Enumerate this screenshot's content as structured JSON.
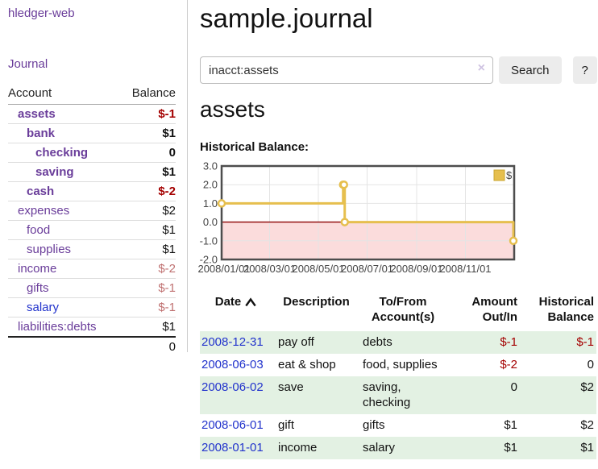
{
  "app": {
    "brand": "hledger-web",
    "nav_journal": "Journal"
  },
  "sidebar": {
    "headers": {
      "account": "Account",
      "balance": "Balance"
    },
    "accounts": [
      {
        "name": "assets",
        "depth": 1,
        "bold": true,
        "balance": "$-1",
        "tone": "neg",
        "link": "purple"
      },
      {
        "name": "bank",
        "depth": 2,
        "bold": true,
        "balance": "$1",
        "tone": "pos",
        "link": "purple"
      },
      {
        "name": "checking",
        "depth": 3,
        "bold": true,
        "balance": "0",
        "tone": "pos",
        "link": "purple"
      },
      {
        "name": "saving",
        "depth": 3,
        "bold": true,
        "balance": "$1",
        "tone": "pos",
        "link": "purple"
      },
      {
        "name": "cash",
        "depth": 2,
        "bold": true,
        "balance": "$-2",
        "tone": "neg",
        "link": "purple"
      },
      {
        "name": "expenses",
        "depth": 1,
        "bold": false,
        "balance": "$2",
        "tone": "pos",
        "link": "purple"
      },
      {
        "name": "food",
        "depth": 2,
        "bold": false,
        "balance": "$1",
        "tone": "pos",
        "link": "purple"
      },
      {
        "name": "supplies",
        "depth": 2,
        "bold": false,
        "balance": "$1",
        "tone": "pos",
        "link": "purple"
      },
      {
        "name": "income",
        "depth": 1,
        "bold": false,
        "balance": "$-2",
        "tone": "soft-neg",
        "link": "purple"
      },
      {
        "name": "gifts",
        "depth": 2,
        "bold": false,
        "balance": "$-1",
        "tone": "soft-neg",
        "link": "purple"
      },
      {
        "name": "salary",
        "depth": 2,
        "bold": false,
        "balance": "$-1",
        "tone": "soft-neg",
        "link": "blue"
      },
      {
        "name": "liabilities:debts",
        "depth": 1,
        "bold": false,
        "balance": "$1",
        "tone": "pos",
        "link": "purple"
      }
    ],
    "total": "0"
  },
  "header": {
    "title": "sample.journal"
  },
  "search": {
    "value": "inacct:assets",
    "clear_icon": "×",
    "button_label": "Search",
    "help_label": "?"
  },
  "account_page": {
    "heading": "assets",
    "chart_label": "Historical Balance:"
  },
  "chart_data": {
    "type": "line",
    "title": "Historical Balance",
    "step": "after",
    "series": [
      {
        "name": "$",
        "color": "#e6bf4e",
        "dates": [
          "2008-01-01",
          "2008-06-01",
          "2008-06-02",
          "2008-06-03",
          "2008-12-31"
        ],
        "values": [
          1,
          2,
          2,
          0,
          -1
        ],
        "points": [
          [
            0,
            1
          ],
          [
            152,
            2
          ],
          [
            153,
            2
          ],
          [
            154,
            0
          ],
          [
            365,
            -1
          ]
        ]
      }
    ],
    "xlim": [
      0,
      366
    ],
    "ylim": [
      -2,
      3
    ],
    "xticks": [
      {
        "v": 0,
        "label": "2008/01/01"
      },
      {
        "v": 60,
        "label": "2008/03/01"
      },
      {
        "v": 121,
        "label": "2008/05/01"
      },
      {
        "v": 182,
        "label": "2008/07/01"
      },
      {
        "v": 244,
        "label": "2008/09/01"
      },
      {
        "v": 305,
        "label": "2008/11/01"
      }
    ],
    "yticks": [
      {
        "v": 3,
        "label": "3.0"
      },
      {
        "v": 2,
        "label": "2.0"
      },
      {
        "v": 1,
        "label": "1.0"
      },
      {
        "v": 0,
        "label": "0.0"
      },
      {
        "v": -1,
        "label": "-1.0"
      },
      {
        "v": -2,
        "label": "-2.0"
      }
    ],
    "grid_on": true,
    "grid_color": "#e4e4e4",
    "negative_fill": "#fbdcdc",
    "zero_line_color": "#8b0000",
    "border_color": "#4d4d4d",
    "legend": {
      "label": "$",
      "position": "top-right",
      "box_border": "#c9a52f"
    }
  },
  "register": {
    "columns": {
      "date": "Date",
      "description": "Description",
      "tofrom1": "To/From",
      "tofrom2": "Account(s)",
      "amount1": "Amount",
      "amount2": "Out/In",
      "hist1": "Historical",
      "hist2": "Balance"
    },
    "rows": [
      {
        "date": "2008-12-31",
        "description": "pay off",
        "accounts": "debts",
        "amount": "$-1",
        "amount_neg": true,
        "balance": "$-1",
        "balance_neg": true,
        "shade": true
      },
      {
        "date": "2008-06-03",
        "description": "eat & shop",
        "accounts": "food, supplies",
        "amount": "$-2",
        "amount_neg": true,
        "balance": "0",
        "balance_neg": false,
        "shade": false
      },
      {
        "date": "2008-06-02",
        "description": "save",
        "accounts": "saving,\nchecking",
        "amount": "0",
        "amount_neg": false,
        "balance": "$2",
        "balance_neg": false,
        "shade": true
      },
      {
        "date": "2008-06-01",
        "description": "gift",
        "accounts": "gifts",
        "amount": "$1",
        "amount_neg": false,
        "balance": "$2",
        "balance_neg": false,
        "shade": false
      },
      {
        "date": "2008-01-01",
        "description": "income",
        "accounts": "salary",
        "amount": "$1",
        "amount_neg": false,
        "balance": "$1",
        "balance_neg": false,
        "shade": true
      }
    ]
  },
  "colors": {
    "accent_purple": "#6a3d9a",
    "link_blue": "#2233cc",
    "negative_red": "#a40000",
    "soft_negative_red": "#bf7070",
    "row_shade_green": "#e3f1e3",
    "chart_line_gold": "#e6bf4e",
    "chart_negative_pink": "#fbdcdc",
    "chart_zero_line": "#8b0000"
  }
}
